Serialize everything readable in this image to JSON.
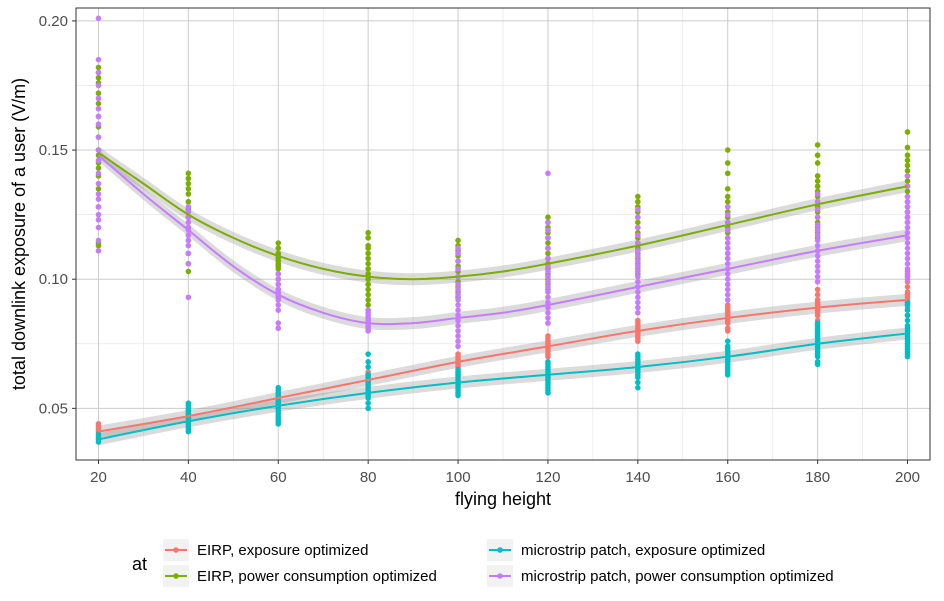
{
  "chart_data": {
    "type": "scatter",
    "xlabel": "flying height",
    "ylabel": "total downlink exposure of a user (V/m)",
    "xlim": [
      15,
      205
    ],
    "ylim": [
      0.03,
      0.205
    ],
    "xticks": [
      20,
      40,
      60,
      80,
      100,
      120,
      140,
      160,
      180,
      200
    ],
    "yticks": [
      0.05,
      0.1,
      0.15,
      0.2
    ],
    "ytick_labels": [
      "0.05",
      "0.10",
      "0.15",
      "0.20"
    ],
    "grid": true,
    "legend": {
      "title": "at",
      "placement": "bottom",
      "entries": [
        "EIRP, exposure optimized",
        "EIRP, power consumption optimized",
        "microstrip patch, exposure optimized",
        "microstrip patch, power consumption optimized"
      ]
    },
    "x": [
      20,
      40,
      60,
      80,
      100,
      120,
      140,
      160,
      180,
      200
    ],
    "series": [
      {
        "name": "EIRP, exposure optimized",
        "color": "#F8766D",
        "points": [
          [
            20,
            [
              0.041,
              0.042,
              0.043,
              0.044
            ]
          ],
          [
            40,
            [
              0.046,
              0.047,
              0.048,
              0.049
            ]
          ],
          [
            60,
            [
              0.052,
              0.053,
              0.054,
              0.055,
              0.056
            ]
          ],
          [
            80,
            [
              0.058,
              0.059,
              0.06,
              0.061,
              0.062,
              0.063,
              0.064
            ]
          ],
          [
            100,
            [
              0.063,
              0.064,
              0.066,
              0.067,
              0.068,
              0.069,
              0.07,
              0.071
            ]
          ],
          [
            120,
            [
              0.07,
              0.071,
              0.072,
              0.073,
              0.074,
              0.075,
              0.076,
              0.077,
              0.078
            ]
          ],
          [
            140,
            [
              0.076,
              0.077,
              0.078,
              0.079,
              0.08,
              0.081,
              0.082,
              0.083,
              0.084
            ]
          ],
          [
            160,
            [
              0.08,
              0.081,
              0.083,
              0.084,
              0.085,
              0.086,
              0.087,
              0.088,
              0.089,
              0.09
            ]
          ],
          [
            180,
            [
              0.084,
              0.086,
              0.087,
              0.088,
              0.089,
              0.09,
              0.091,
              0.092,
              0.094,
              0.096
            ]
          ],
          [
            200,
            [
              0.086,
              0.088,
              0.089,
              0.09,
              0.091,
              0.092,
              0.093,
              0.094,
              0.095,
              0.097,
              0.099,
              0.101,
              0.103
            ]
          ]
        ],
        "trend": [
          [
            20,
            0.041
          ],
          [
            40,
            0.047
          ],
          [
            60,
            0.054
          ],
          [
            80,
            0.061
          ],
          [
            100,
            0.068
          ],
          [
            120,
            0.074
          ],
          [
            140,
            0.08
          ],
          [
            160,
            0.085
          ],
          [
            180,
            0.089
          ],
          [
            200,
            0.092
          ]
        ]
      },
      {
        "name": "EIRP, power consumption optimized",
        "color": "#7CAE00",
        "points": [
          [
            20,
            [
              0.113,
              0.114,
              0.128,
              0.135,
              0.14,
              0.143,
              0.145,
              0.148,
              0.15,
              0.155,
              0.159,
              0.163,
              0.168,
              0.172,
              0.176,
              0.178,
              0.18,
              0.182
            ]
          ],
          [
            40,
            [
              0.103,
              0.106,
              0.11,
              0.115,
              0.12,
              0.124,
              0.127,
              0.13,
              0.133,
              0.135,
              0.137,
              0.139,
              0.141
            ]
          ],
          [
            60,
            [
              0.098,
              0.1,
              0.102,
              0.104,
              0.105,
              0.106,
              0.107,
              0.108,
              0.109,
              0.11,
              0.112,
              0.114
            ]
          ],
          [
            80,
            [
              0.09,
              0.092,
              0.094,
              0.096,
              0.098,
              0.1,
              0.102,
              0.104,
              0.106,
              0.108,
              0.11,
              0.112,
              0.113,
              0.116,
              0.118
            ]
          ],
          [
            100,
            [
              0.093,
              0.095,
              0.097,
              0.099,
              0.101,
              0.103,
              0.105,
              0.107,
              0.109,
              0.111,
              0.113,
              0.115
            ]
          ],
          [
            120,
            [
              0.096,
              0.098,
              0.1,
              0.102,
              0.104,
              0.106,
              0.108,
              0.11,
              0.112,
              0.114,
              0.116,
              0.118,
              0.12,
              0.122,
              0.124
            ]
          ],
          [
            140,
            [
              0.102,
              0.104,
              0.106,
              0.108,
              0.11,
              0.112,
              0.114,
              0.116,
              0.118,
              0.12,
              0.122,
              0.124,
              0.126,
              0.128,
              0.13,
              0.132
            ]
          ],
          [
            160,
            [
              0.108,
              0.11,
              0.112,
              0.114,
              0.116,
              0.118,
              0.12,
              0.122,
              0.124,
              0.126,
              0.128,
              0.13,
              0.132,
              0.135,
              0.141,
              0.145,
              0.15
            ]
          ],
          [
            180,
            [
              0.116,
              0.118,
              0.12,
              0.122,
              0.124,
              0.126,
              0.128,
              0.13,
              0.132,
              0.134,
              0.136,
              0.138,
              0.14,
              0.145,
              0.148,
              0.152
            ]
          ],
          [
            200,
            [
              0.122,
              0.124,
              0.126,
              0.128,
              0.13,
              0.132,
              0.134,
              0.136,
              0.138,
              0.14,
              0.142,
              0.144,
              0.146,
              0.148,
              0.151,
              0.157
            ]
          ]
        ],
        "trend": [
          [
            20,
            0.149
          ],
          [
            30,
            0.137
          ],
          [
            40,
            0.125
          ],
          [
            50,
            0.116
          ],
          [
            60,
            0.109
          ],
          [
            70,
            0.104
          ],
          [
            80,
            0.101
          ],
          [
            90,
            0.1
          ],
          [
            100,
            0.101
          ],
          [
            110,
            0.103
          ],
          [
            120,
            0.106
          ],
          [
            140,
            0.113
          ],
          [
            160,
            0.121
          ],
          [
            180,
            0.129
          ],
          [
            200,
            0.136
          ]
        ]
      },
      {
        "name": "microstrip patch, exposure optimized",
        "color": "#00BFC4",
        "points": [
          [
            20,
            [
              0.037,
              0.038,
              0.039,
              0.04
            ]
          ],
          [
            40,
            [
              0.041,
              0.042,
              0.043,
              0.044,
              0.045,
              0.046,
              0.047,
              0.048,
              0.049,
              0.05,
              0.051,
              0.052
            ]
          ],
          [
            60,
            [
              0.044,
              0.045,
              0.046,
              0.047,
              0.048,
              0.049,
              0.05,
              0.051,
              0.052,
              0.053,
              0.054,
              0.055,
              0.056,
              0.057,
              0.058
            ]
          ],
          [
            80,
            [
              0.05,
              0.052,
              0.054,
              0.055,
              0.056,
              0.057,
              0.058,
              0.059,
              0.06,
              0.061,
              0.062,
              0.063,
              0.066,
              0.068,
              0.071
            ]
          ],
          [
            100,
            [
              0.055,
              0.056,
              0.057,
              0.058,
              0.059,
              0.06,
              0.061,
              0.062,
              0.063,
              0.064,
              0.065
            ]
          ],
          [
            120,
            [
              0.056,
              0.057,
              0.058,
              0.059,
              0.06,
              0.061,
              0.062,
              0.063,
              0.064,
              0.065,
              0.066,
              0.067,
              0.068
            ]
          ],
          [
            140,
            [
              0.058,
              0.06,
              0.062,
              0.063,
              0.064,
              0.065,
              0.066,
              0.067,
              0.068,
              0.069,
              0.07,
              0.071
            ]
          ],
          [
            160,
            [
              0.063,
              0.064,
              0.065,
              0.066,
              0.067,
              0.068,
              0.069,
              0.07,
              0.071,
              0.072,
              0.073,
              0.074,
              0.076
            ]
          ],
          [
            180,
            [
              0.067,
              0.068,
              0.07,
              0.071,
              0.072,
              0.073,
              0.074,
              0.075,
              0.076,
              0.077,
              0.078,
              0.079,
              0.08,
              0.081,
              0.082,
              0.083
            ]
          ],
          [
            200,
            [
              0.07,
              0.071,
              0.072,
              0.073,
              0.074,
              0.075,
              0.076,
              0.077,
              0.078,
              0.079,
              0.08,
              0.081,
              0.082,
              0.084,
              0.086,
              0.088,
              0.09,
              0.091
            ]
          ]
        ],
        "trend": [
          [
            20,
            0.038
          ],
          [
            40,
            0.045
          ],
          [
            60,
            0.051
          ],
          [
            80,
            0.056
          ],
          [
            100,
            0.06
          ],
          [
            120,
            0.063
          ],
          [
            140,
            0.066
          ],
          [
            160,
            0.07
          ],
          [
            180,
            0.075
          ],
          [
            200,
            0.079
          ]
        ]
      },
      {
        "name": "microstrip patch, power consumption optimized",
        "color": "#C77CFF",
        "points": [
          [
            20,
            [
              0.111,
              0.115,
              0.12,
              0.123,
              0.125,
              0.128,
              0.131,
              0.133,
              0.137,
              0.141,
              0.146,
              0.15,
              0.155,
              0.16,
              0.163,
              0.166,
              0.17,
              0.175,
              0.18,
              0.185,
              0.201
            ]
          ],
          [
            40,
            [
              0.093,
              0.106,
              0.11,
              0.113,
              0.115,
              0.117,
              0.119,
              0.12,
              0.122,
              0.124,
              0.126,
              0.128
            ]
          ],
          [
            60,
            [
              0.081,
              0.083,
              0.088,
              0.09,
              0.092,
              0.093,
              0.094,
              0.095,
              0.096,
              0.098,
              0.1,
              0.102
            ]
          ],
          [
            80,
            [
              0.08,
              0.081,
              0.082,
              0.083,
              0.084,
              0.085,
              0.086,
              0.087,
              0.088
            ]
          ],
          [
            100,
            [
              0.074,
              0.076,
              0.078,
              0.08,
              0.082,
              0.084,
              0.086,
              0.088,
              0.09,
              0.092,
              0.094,
              0.096,
              0.098,
              0.101,
              0.104,
              0.107,
              0.11,
              0.112
            ]
          ],
          [
            120,
            [
              0.083,
              0.085,
              0.087,
              0.089,
              0.091,
              0.093,
              0.095,
              0.097,
              0.099,
              0.101,
              0.103,
              0.105,
              0.108,
              0.112,
              0.116,
              0.119,
              0.122,
              0.141
            ]
          ],
          [
            140,
            [
              0.087,
              0.089,
              0.091,
              0.093,
              0.095,
              0.097,
              0.099,
              0.101,
              0.103,
              0.105,
              0.107,
              0.109,
              0.111,
              0.114,
              0.117,
              0.12,
              0.124,
              0.127
            ]
          ],
          [
            160,
            [
              0.092,
              0.094,
              0.096,
              0.098,
              0.1,
              0.102,
              0.104,
              0.106,
              0.108,
              0.11,
              0.112,
              0.114,
              0.116,
              0.119,
              0.122,
              0.125,
              0.128
            ]
          ],
          [
            180,
            [
              0.099,
              0.101,
              0.103,
              0.105,
              0.107,
              0.109,
              0.111,
              0.113,
              0.115,
              0.117,
              0.119,
              0.121,
              0.124,
              0.127,
              0.13,
              0.133
            ]
          ],
          [
            200,
            [
              0.1,
              0.102,
              0.104,
              0.106,
              0.108,
              0.11,
              0.112,
              0.114,
              0.116,
              0.118,
              0.12,
              0.122,
              0.124,
              0.126,
              0.128,
              0.13,
              0.132,
              0.136,
              0.14
            ]
          ]
        ],
        "trend": [
          [
            20,
            0.148
          ],
          [
            30,
            0.133
          ],
          [
            40,
            0.119
          ],
          [
            50,
            0.105
          ],
          [
            60,
            0.094
          ],
          [
            70,
            0.087
          ],
          [
            80,
            0.083
          ],
          [
            90,
            0.083
          ],
          [
            100,
            0.085
          ],
          [
            110,
            0.087
          ],
          [
            120,
            0.09
          ],
          [
            140,
            0.097
          ],
          [
            160,
            0.104
          ],
          [
            180,
            0.111
          ],
          [
            200,
            0.117
          ]
        ]
      }
    ]
  }
}
